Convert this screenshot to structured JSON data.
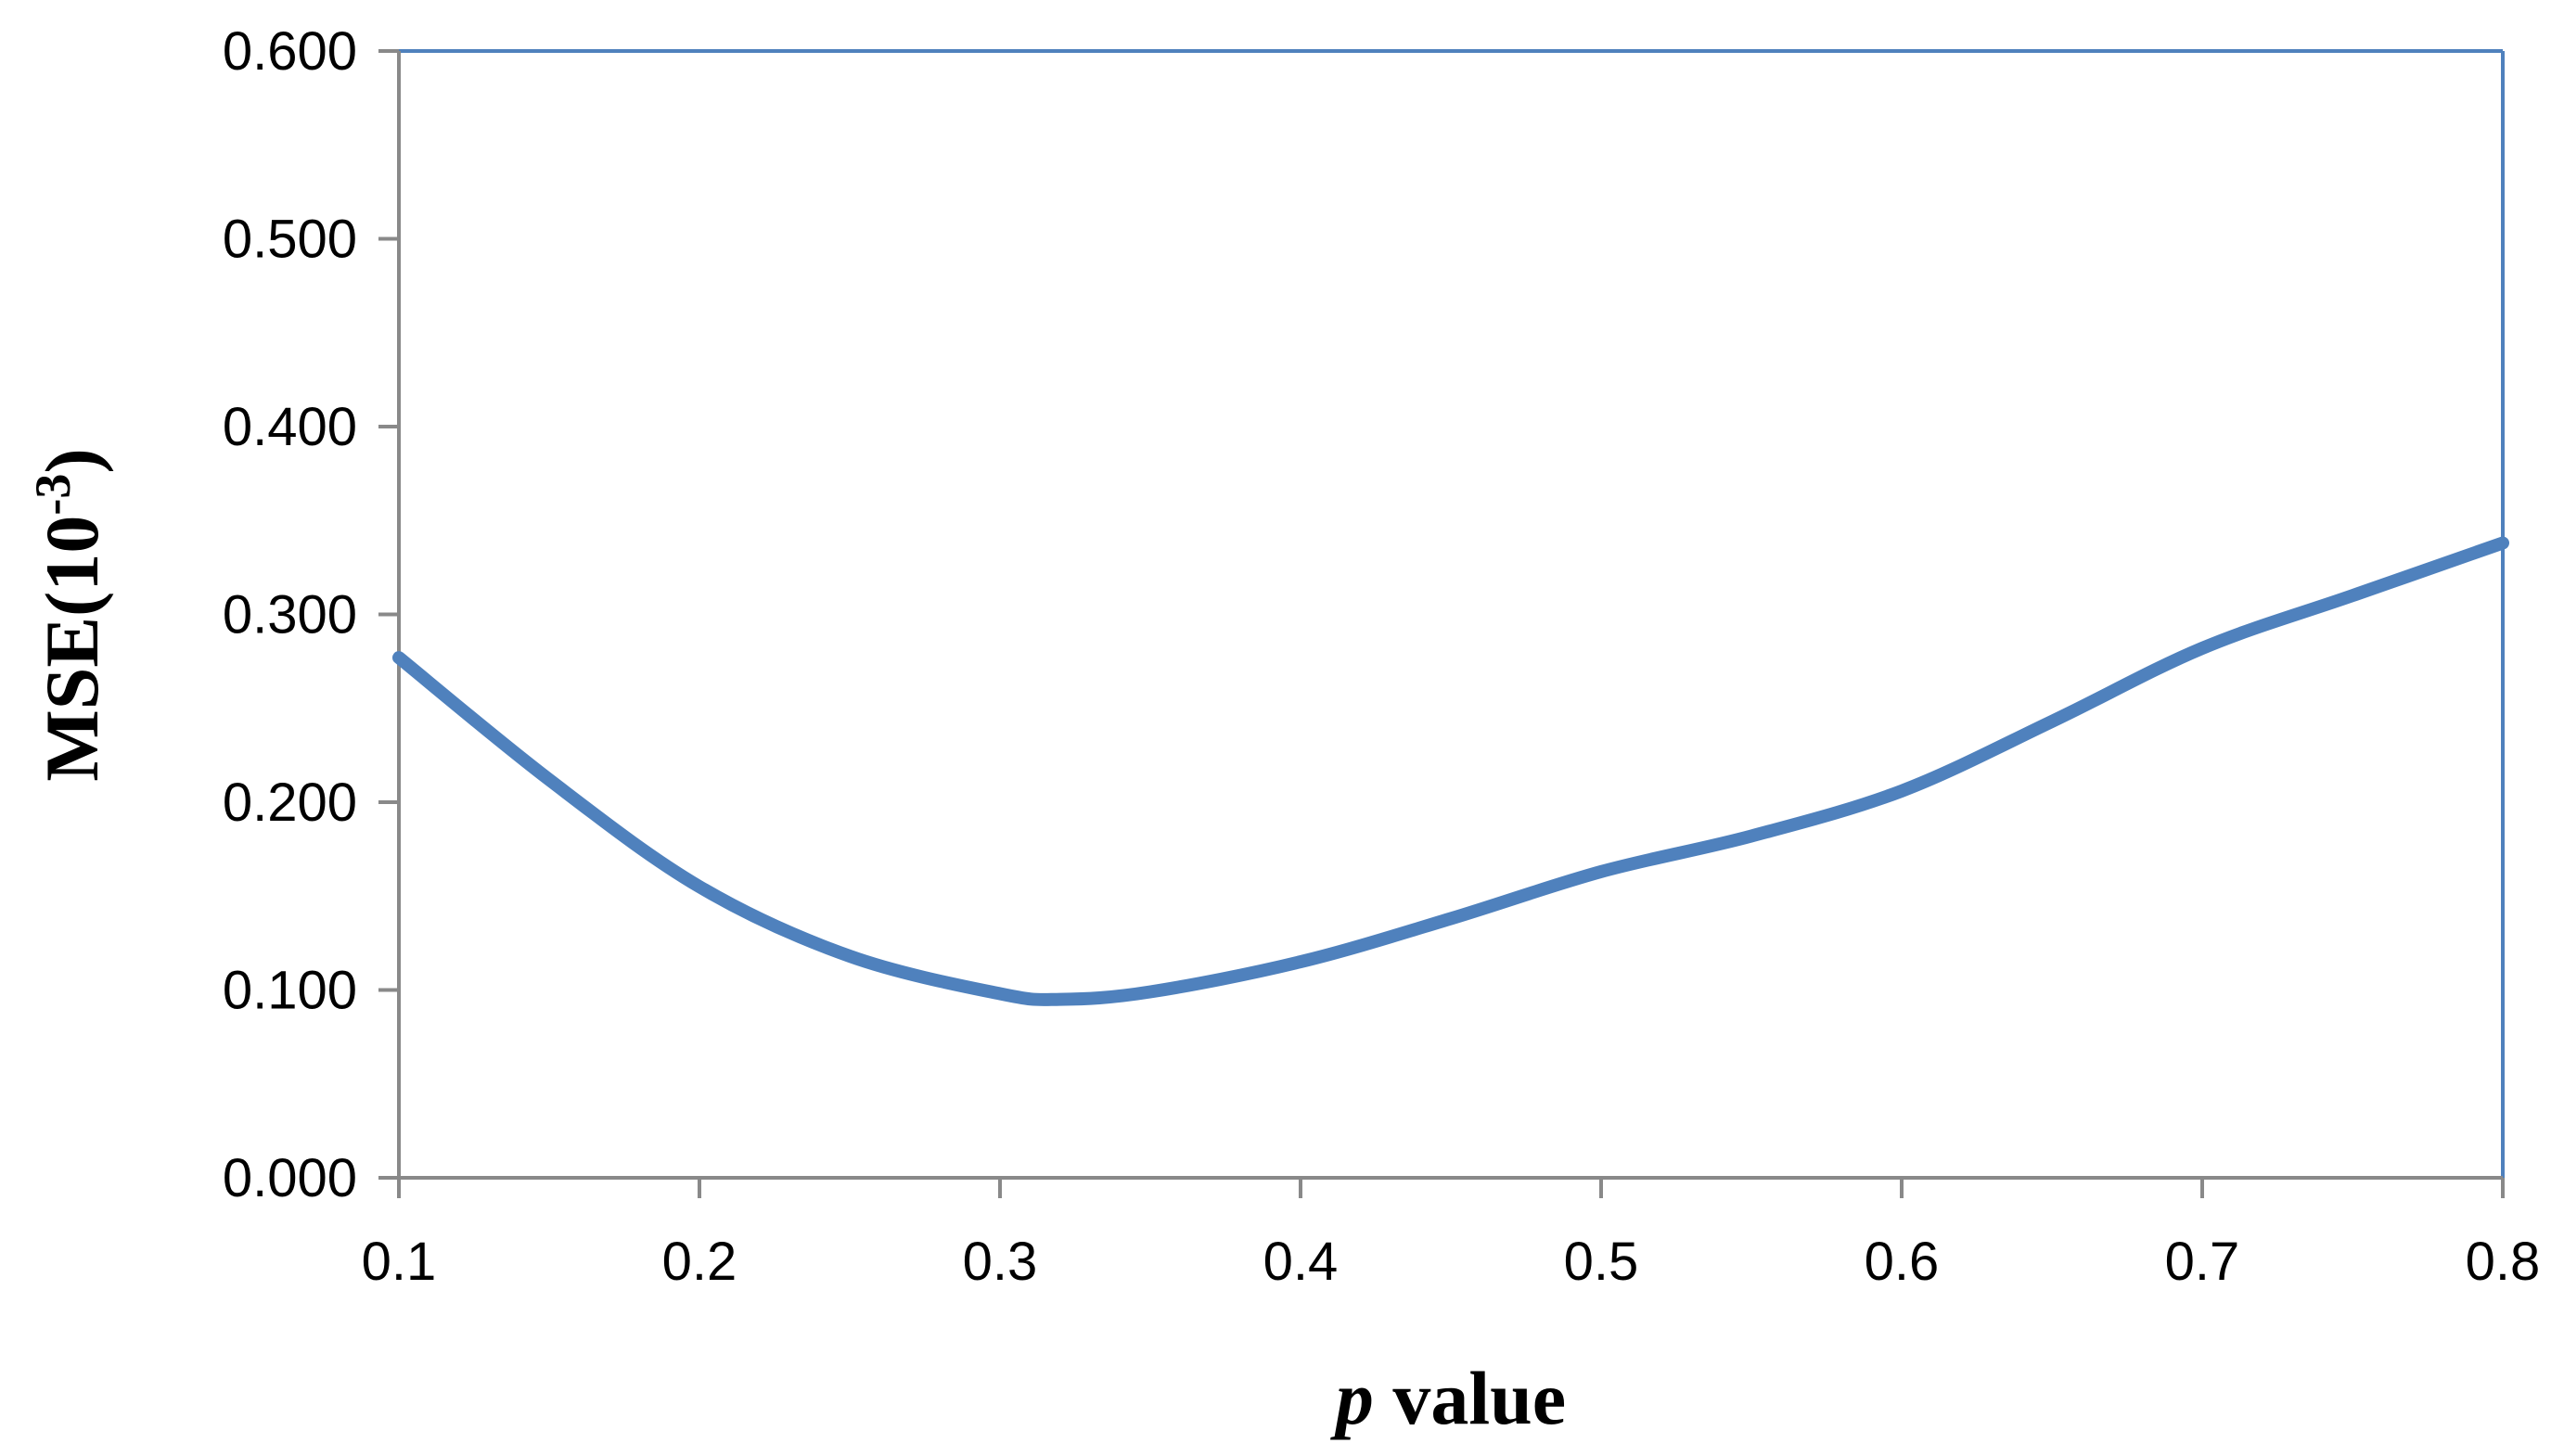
{
  "chart_data": {
    "type": "line",
    "xlabel": {
      "prefix": "p",
      "rest": " value"
    },
    "ylabel": {
      "base": "MSE(10",
      "sup": "-3",
      "close": ")"
    },
    "xlim": [
      0.1,
      0.8
    ],
    "ylim": [
      0.0,
      0.6
    ],
    "x_ticks": [
      "0.1",
      "0.2",
      "0.3",
      "0.4",
      "0.5",
      "0.6",
      "0.7",
      "0.8"
    ],
    "y_ticks": [
      "0.000",
      "0.100",
      "0.200",
      "0.300",
      "0.400",
      "0.500",
      "0.600"
    ],
    "grid": false,
    "legend": "none",
    "series": [
      {
        "color": "#4f81bd",
        "x": [
          0.1,
          0.15,
          0.2,
          0.25,
          0.3,
          0.32,
          0.35,
          0.4,
          0.45,
          0.5,
          0.55,
          0.6,
          0.65,
          0.7,
          0.75,
          0.8
        ],
        "y": [
          0.277,
          0.212,
          0.155,
          0.118,
          0.098,
          0.095,
          0.099,
          0.115,
          0.138,
          0.163,
          0.182,
          0.206,
          0.243,
          0.282,
          0.31,
          0.338
        ]
      }
    ]
  }
}
